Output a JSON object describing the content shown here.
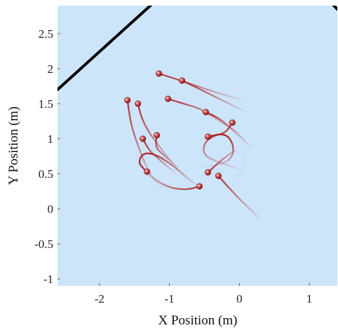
{
  "chart_data": {
    "type": "line",
    "xlabel": "X Position (m)",
    "ylabel": "Y Position (m)",
    "xlim": [
      -2.6,
      1.4
    ],
    "ylim": [
      -1.1,
      2.9
    ],
    "x_ticks": [
      -2,
      -1,
      0,
      1
    ],
    "y_ticks": [
      -1,
      -0.5,
      0,
      0.5,
      1,
      1.5,
      2,
      2.5
    ],
    "x_tick_labels": [
      "-2",
      "-1",
      "0",
      "1"
    ],
    "y_tick_labels": [
      "-1",
      "-0.5",
      "0",
      "0.5",
      "1",
      "1.5",
      "2",
      "2.5"
    ],
    "grid": false,
    "background_color": "#cce5fb",
    "boundary_color": "#000000",
    "trajectory_color": "#b11e1e",
    "boundaries": [
      {
        "x": [
          -2.6,
          -1.25
        ],
        "y": [
          1.7,
          2.92
        ]
      },
      {
        "x": [
          1.35,
          1.45
        ],
        "y": [
          2.9,
          2.8
        ]
      }
    ],
    "trajectories": [
      {
        "x": [
          -1.15,
          -0.9,
          -0.6,
          -0.3,
          0.05
        ],
        "y": [
          1.93,
          1.85,
          1.75,
          1.65,
          1.55
        ]
      },
      {
        "x": [
          -0.82,
          -0.55,
          -0.25,
          0.1
        ],
        "y": [
          1.83,
          1.7,
          1.55,
          1.38
        ]
      },
      {
        "x": [
          -1.02,
          -0.8,
          -0.62,
          -0.48,
          -0.2,
          0.0
        ],
        "y": [
          1.57,
          1.5,
          1.45,
          1.38,
          1.2,
          1.08
        ]
      },
      {
        "x": [
          -1.6,
          -1.55,
          -1.45,
          -1.35,
          -1.25,
          -1.1
        ],
        "y": [
          1.55,
          1.2,
          0.9,
          0.65,
          0.45,
          0.3
        ]
      },
      {
        "x": [
          -1.45,
          -1.4,
          -1.3,
          -1.15,
          -1.0,
          -0.85
        ],
        "y": [
          1.5,
          1.3,
          1.1,
          0.9,
          0.7,
          0.55
        ]
      },
      {
        "x": [
          -1.38,
          -1.3,
          -1.2,
          -1.05,
          -0.9
        ],
        "y": [
          1.0,
          0.85,
          0.75,
          0.62,
          0.5
        ]
      },
      {
        "x": [
          -1.18,
          -1.2,
          -1.1,
          -0.98,
          -0.88
        ],
        "y": [
          1.05,
          0.88,
          0.78,
          0.68,
          0.58
        ]
      },
      {
        "x": [
          -1.32,
          -1.45,
          -1.38,
          -1.2,
          -0.95,
          -0.7,
          -0.58
        ],
        "y": [
          0.53,
          0.65,
          0.8,
          0.78,
          0.62,
          0.4,
          0.32
        ]
      },
      {
        "x": [
          -0.57,
          -0.75,
          -1.0,
          -1.22,
          -1.4,
          -1.38
        ],
        "y": [
          0.32,
          0.27,
          0.3,
          0.42,
          0.58,
          0.75
        ]
      },
      {
        "x": [
          -0.48,
          -0.3,
          -0.12,
          0.05,
          0.15
        ],
        "y": [
          1.38,
          1.3,
          1.15,
          1.0,
          0.88
        ]
      },
      {
        "x": [
          -0.1,
          -0.2,
          -0.35,
          -0.5,
          -0.52,
          -0.35,
          -0.15,
          0.0
        ],
        "y": [
          1.23,
          1.08,
          1.05,
          0.95,
          0.78,
          0.68,
          0.62,
          0.55
        ]
      },
      {
        "x": [
          -0.45,
          -0.2,
          -0.08,
          -0.1,
          -0.3,
          -0.5
        ],
        "y": [
          1.03,
          1.08,
          0.92,
          0.72,
          0.62,
          0.6
        ]
      },
      {
        "x": [
          -0.45,
          -0.25,
          -0.05,
          0.1,
          0.05,
          -0.1
        ],
        "y": [
          0.52,
          0.7,
          0.85,
          0.75,
          0.5,
          0.45
        ]
      },
      {
        "x": [
          -0.3,
          -0.15,
          0.02,
          0.2,
          0.3
        ],
        "y": [
          0.47,
          0.3,
          0.12,
          -0.05,
          -0.15
        ]
      }
    ]
  }
}
